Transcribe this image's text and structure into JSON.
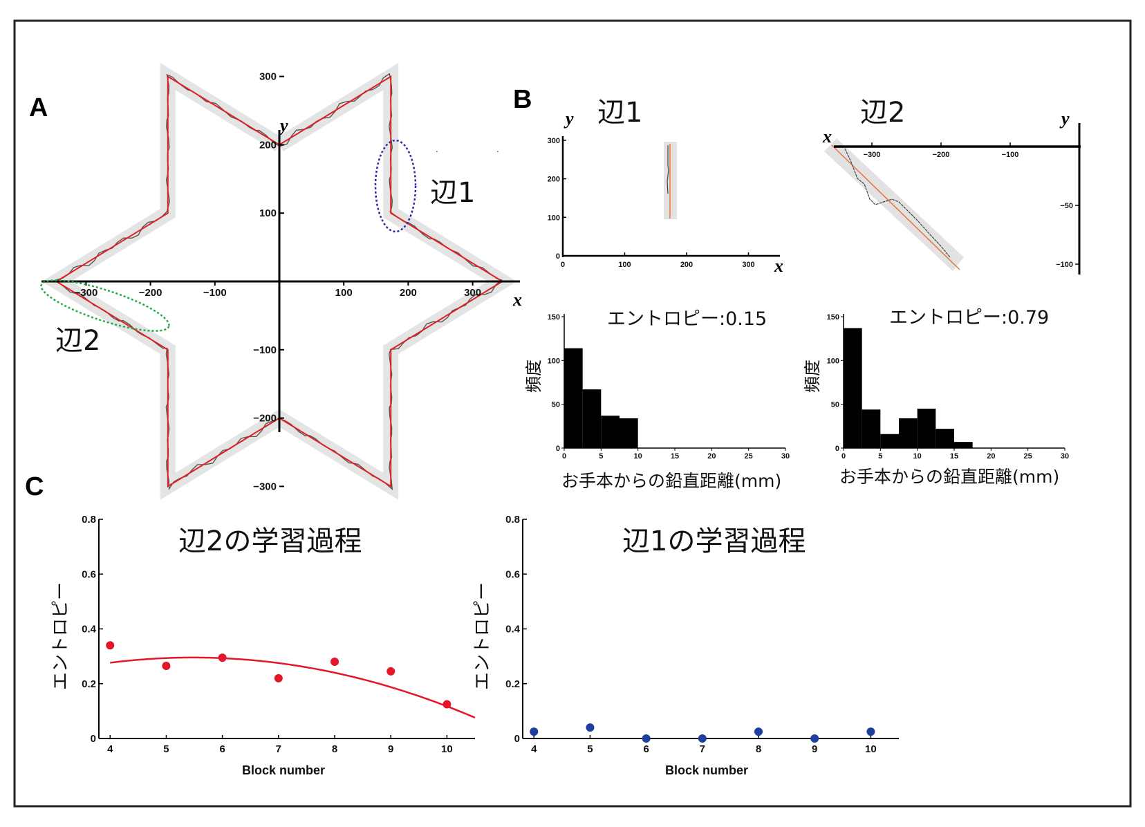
{
  "panels": {
    "A": {
      "letter": "A",
      "x_axis_var": "x",
      "y_axis_var": "y",
      "x_ticks": [
        "−300",
        "−200",
        "−100",
        "100",
        "200",
        "300"
      ],
      "y_ticks": [
        "300",
        "200",
        "100",
        "−100",
        "−200",
        "−300"
      ],
      "edge1_label": "辺1",
      "edge2_label": "辺2"
    },
    "B": {
      "letter": "B",
      "edge1": {
        "title": "辺1",
        "x_axis_var": "x",
        "y_axis_var": "y",
        "x_ticks": [
          "0",
          "100",
          "200",
          "300"
        ],
        "y_ticks": [
          "300",
          "200",
          "100",
          "0"
        ]
      },
      "edge2": {
        "title": "辺2",
        "x_axis_var": "x",
        "y_axis_var": "y",
        "x_ticks": [
          "−300",
          "−200",
          "−100"
        ],
        "y_ticks": [
          "−50",
          "−100"
        ]
      },
      "hist_y_label": "頻度",
      "hist_x_label": "お手本からの鉛直距離(mm)",
      "hist1_entropy": "エントロピー:0.15",
      "hist2_entropy": "エントロピー:0.79",
      "hist_x_ticks": [
        "0",
        "5",
        "10",
        "15",
        "20",
        "25",
        "30"
      ],
      "hist_y_ticks": [
        "150",
        "100",
        "50",
        "0"
      ]
    },
    "C": {
      "letter": "C",
      "left_title": "辺2の学習過程",
      "right_title": "辺1の学習過程",
      "y_label": "エントロピー",
      "x_label": "Block number",
      "y_ticks": [
        "0.8",
        "0.6",
        "0.4",
        "0.2",
        "0"
      ],
      "x_ticks": [
        "4",
        "5",
        "6",
        "7",
        "8",
        "9",
        "10"
      ]
    }
  },
  "colors": {
    "template": "#e02020",
    "trace": "#555555",
    "band": "#e4e4e4",
    "ellipse_edge1": "#2a2aa8",
    "ellipse_edge2": "#22aa44",
    "edge2_points": "#e3162a",
    "edge1_points": "#1d3f9e",
    "bars": "#000000",
    "model_line": "#e3162a"
  },
  "chart_data": [
    {
      "type": "line",
      "id": "star-template",
      "title": "",
      "xlabel": "x",
      "ylabel": "y",
      "xlim": [
        -345,
        345
      ],
      "ylim": [
        -330,
        330
      ],
      "vertices": [
        [
          0,
          200
        ],
        [
          173,
          300
        ],
        [
          173,
          100
        ],
        [
          346,
          0
        ],
        [
          173,
          -100
        ],
        [
          173,
          -300
        ],
        [
          0,
          -200
        ],
        [
          -173,
          -300
        ],
        [
          -173,
          -100
        ],
        [
          -346,
          0
        ],
        [
          -173,
          100
        ],
        [
          -173,
          300
        ]
      ]
    },
    {
      "type": "bar",
      "id": "histogram-edge1",
      "title": "エントロピー:0.15",
      "xlabel": "お手本からの鉛直距離(mm)",
      "ylabel": "頻度",
      "bin_edges": [
        0,
        2.5,
        5,
        7.5,
        10
      ],
      "values": [
        114,
        67,
        37,
        34
      ],
      "xlim": [
        0,
        30
      ],
      "ylim": [
        0,
        150
      ]
    },
    {
      "type": "bar",
      "id": "histogram-edge2",
      "title": "エントロピー:0.79",
      "xlabel": "お手本からの鉛直距離(mm)",
      "ylabel": "頻度",
      "bin_edges": [
        0,
        2.5,
        5,
        7.5,
        10,
        12.5,
        15,
        17.5
      ],
      "values": [
        137,
        44,
        16,
        34,
        45,
        22,
        7
      ],
      "xlim": [
        0,
        30
      ],
      "ylim": [
        0,
        150
      ]
    },
    {
      "type": "scatter",
      "id": "learning-edge2",
      "title": "辺2の学習過程",
      "xlabel": "Block number",
      "ylabel": "エントロピー",
      "x": [
        4,
        5,
        6,
        7,
        8,
        9,
        10
      ],
      "y": [
        0.34,
        0.265,
        0.295,
        0.22,
        0.28,
        0.245,
        0.125
      ],
      "fit": {
        "type": "quadratic",
        "a": -0.0087,
        "b": 0.0953,
        "c": 0.0345,
        "x_range": [
          4,
          10.5
        ]
      },
      "xlim": [
        3.8,
        10.5
      ],
      "ylim": [
        0,
        0.8
      ]
    },
    {
      "type": "scatter",
      "id": "learning-edge1",
      "title": "辺1の学習過程",
      "xlabel": "Block number",
      "ylabel": "エントロピー",
      "x": [
        4,
        5,
        6,
        7,
        8,
        9,
        10
      ],
      "y": [
        0.025,
        0.04,
        0.0,
        0.0,
        0.025,
        0.0,
        0.025
      ],
      "xlim": [
        3.8,
        10.5
      ],
      "ylim": [
        0,
        0.8
      ]
    }
  ]
}
